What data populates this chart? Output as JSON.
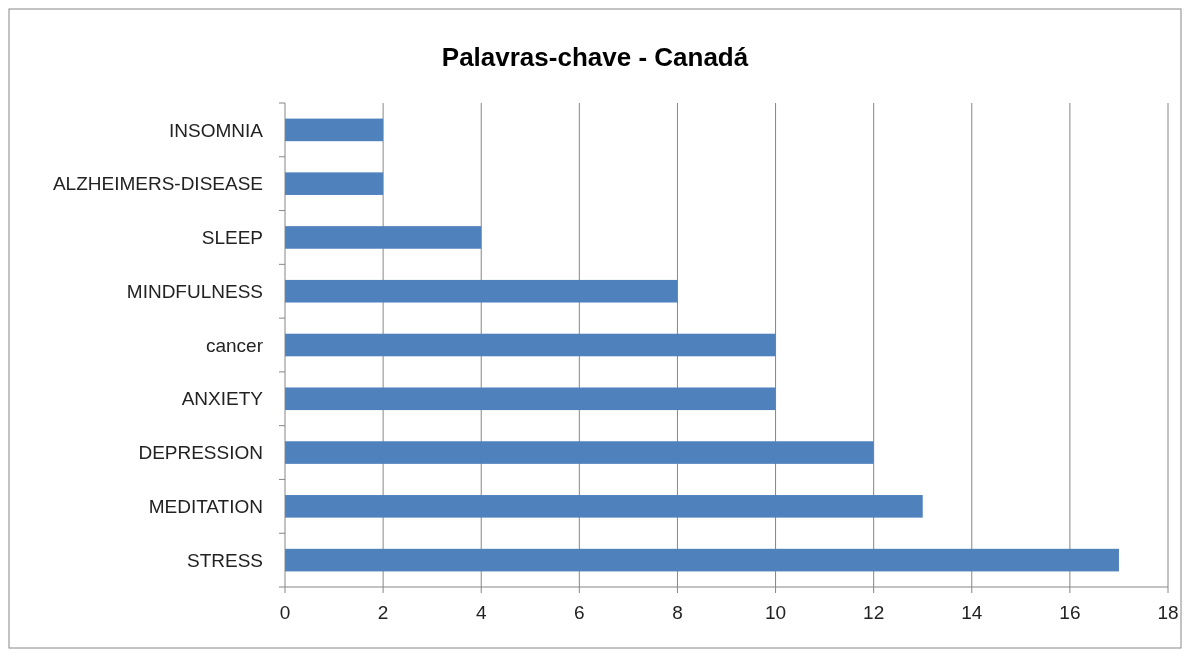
{
  "chart_data": {
    "type": "bar",
    "orientation": "horizontal",
    "title": "Palavras-chave - Canadá",
    "categories": [
      "INSOMNIA",
      "ALZHEIMERS-DISEASE",
      "SLEEP",
      "MINDFULNESS",
      "cancer",
      "ANXIETY",
      "DEPRESSION",
      "MEDITATION",
      "STRESS"
    ],
    "values": [
      2,
      2,
      4,
      8,
      10,
      10,
      12,
      13,
      17
    ],
    "color": "#4f81bd",
    "xlim": [
      0,
      18
    ],
    "xticks": [
      0,
      2,
      4,
      6,
      8,
      10,
      12,
      14,
      16,
      18
    ],
    "grid": "x"
  }
}
